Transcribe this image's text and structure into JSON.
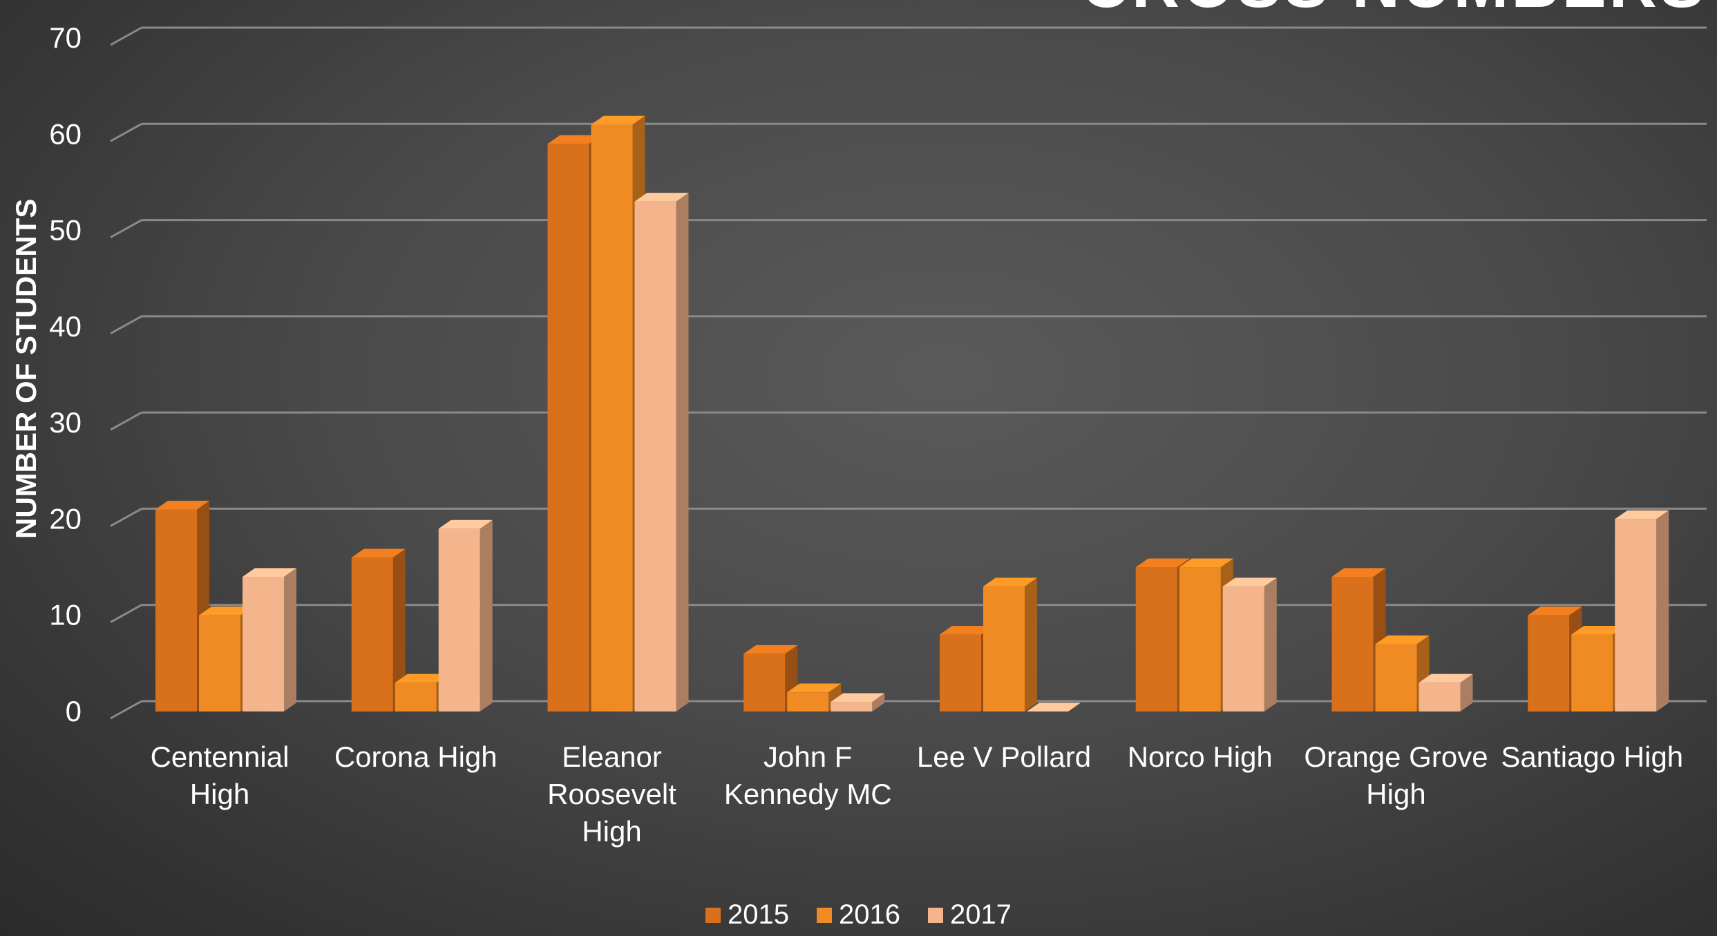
{
  "chart_data": {
    "type": "bar",
    "title": "CROSS NUMBERS",
    "ylabel": "NUMBER OF STUDENTS",
    "xlabel": "",
    "ylim": [
      0,
      70
    ],
    "yticks": [
      0,
      10,
      20,
      30,
      40,
      50,
      60,
      70
    ],
    "grid": true,
    "legend_position": "bottom",
    "categories": [
      [
        "Centennial",
        "High"
      ],
      [
        "Corona High"
      ],
      [
        "Eleanor",
        "Roosevelt",
        "High"
      ],
      [
        "John F",
        "Kennedy MC"
      ],
      [
        "Lee V Pollard"
      ],
      [
        "Norco High"
      ],
      [
        "Orange Grove",
        "High"
      ],
      [
        "Santiago High"
      ]
    ],
    "series": [
      {
        "name": "2015",
        "color": "#d9711c",
        "values": [
          21,
          16,
          59,
          6,
          8,
          15,
          14,
          10
        ]
      },
      {
        "name": "2016",
        "color": "#f08a23",
        "values": [
          10,
          3,
          61,
          2,
          13,
          15,
          7,
          8
        ]
      },
      {
        "name": "2017",
        "color": "#f4b48c",
        "values": [
          14,
          19,
          53,
          1,
          0,
          13,
          3,
          20
        ]
      }
    ]
  }
}
